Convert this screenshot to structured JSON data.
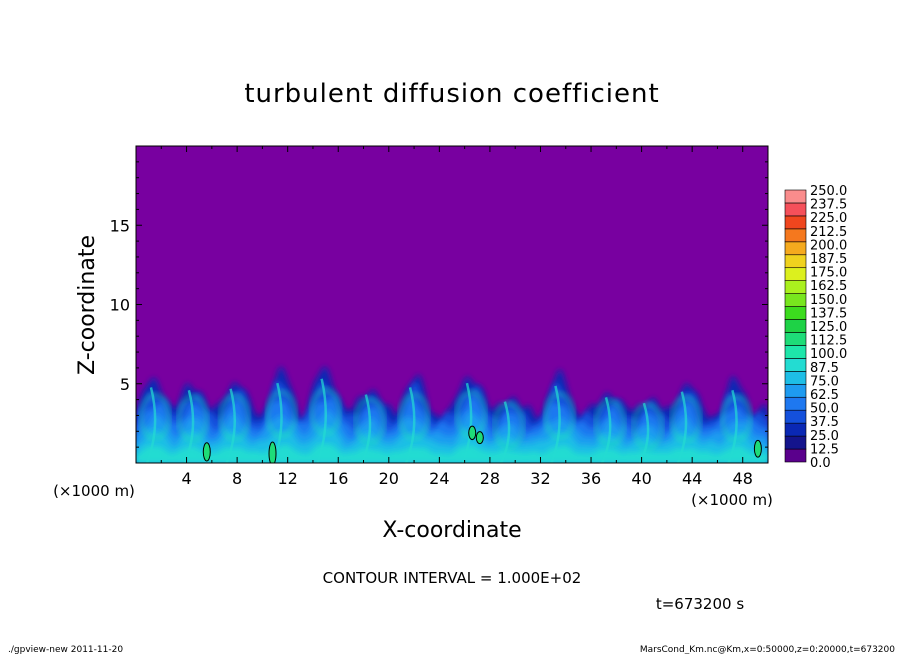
{
  "chart_data": {
    "type": "heatmap",
    "title": "turbulent diffusion coefficient",
    "xlabel": "X-coordinate",
    "ylabel": "Z-coordinate",
    "x_unit": "(×1000 m)",
    "y_unit": "(×1000 m)",
    "xlim": [
      0,
      50
    ],
    "ylim": [
      0,
      20
    ],
    "x_ticks": [
      "4",
      "8",
      "12",
      "16",
      "20",
      "24",
      "28",
      "32",
      "36",
      "40",
      "44",
      "48"
    ],
    "y_ticks": [
      "5",
      "10",
      "15"
    ],
    "legend_levels": [
      "0.0",
      "12.5",
      "25.0",
      "37.5",
      "50.0",
      "62.5",
      "75.0",
      "87.5",
      "100.0",
      "112.5",
      "125.0",
      "137.5",
      "150.0",
      "162.5",
      "175.0",
      "187.5",
      "200.0",
      "212.5",
      "225.0",
      "237.5",
      "250.0"
    ],
    "legend_colors": [
      "#5a008c",
      "#14148c",
      "#0a28b4",
      "#1450dc",
      "#1e78f0",
      "#1e9bf0",
      "#1ebee6",
      "#23dcd2",
      "#1ee6aa",
      "#1edc78",
      "#1ed246",
      "#3cdc1e",
      "#78e61e",
      "#aaf01e",
      "#dcf01e",
      "#f0d21e",
      "#f5aa1e",
      "#f5781e",
      "#f0461e",
      "#f5505a",
      "#fa8c8c"
    ],
    "background_color": "#7800a0",
    "contour_interval": "CONTOUR INTERVAL = 1.000E+02",
    "time_label": "t=673200  s",
    "field_description": "turbulent layer with cells from z=0 to about 5 (×1000 m); peaks near x=11, x=5, x=27",
    "plumes": [
      {
        "x": 1.5,
        "top": 5.3
      },
      {
        "x": 4.5,
        "top": 5.1
      },
      {
        "x": 7.8,
        "top": 5.2
      },
      {
        "x": 11.5,
        "top": 5.6
      },
      {
        "x": 15.0,
        "top": 5.9
      },
      {
        "x": 18.5,
        "top": 4.8
      },
      {
        "x": 22.0,
        "top": 5.3
      },
      {
        "x": 26.5,
        "top": 5.6
      },
      {
        "x": 29.5,
        "top": 4.3
      },
      {
        "x": 33.5,
        "top": 5.4
      },
      {
        "x": 37.5,
        "top": 4.6
      },
      {
        "x": 40.5,
        "top": 4.2
      },
      {
        "x": 43.5,
        "top": 5.0
      },
      {
        "x": 47.5,
        "top": 5.1
      }
    ],
    "green_patches": [
      {
        "x": 5.6,
        "z": 0.7,
        "h": 0.9
      },
      {
        "x": 10.8,
        "z": 0.6,
        "h": 1.2
      },
      {
        "x": 26.6,
        "z": 1.9,
        "h": 0.6
      },
      {
        "x": 27.2,
        "z": 1.6,
        "h": 0.5
      },
      {
        "x": 49.2,
        "z": 0.9,
        "h": 0.8
      }
    ]
  },
  "footer": {
    "left": "./gpview-new   2011-11-20",
    "right": "MarsCond_Km.nc@Km,x=0:50000,z=0:20000,t=673200"
  }
}
